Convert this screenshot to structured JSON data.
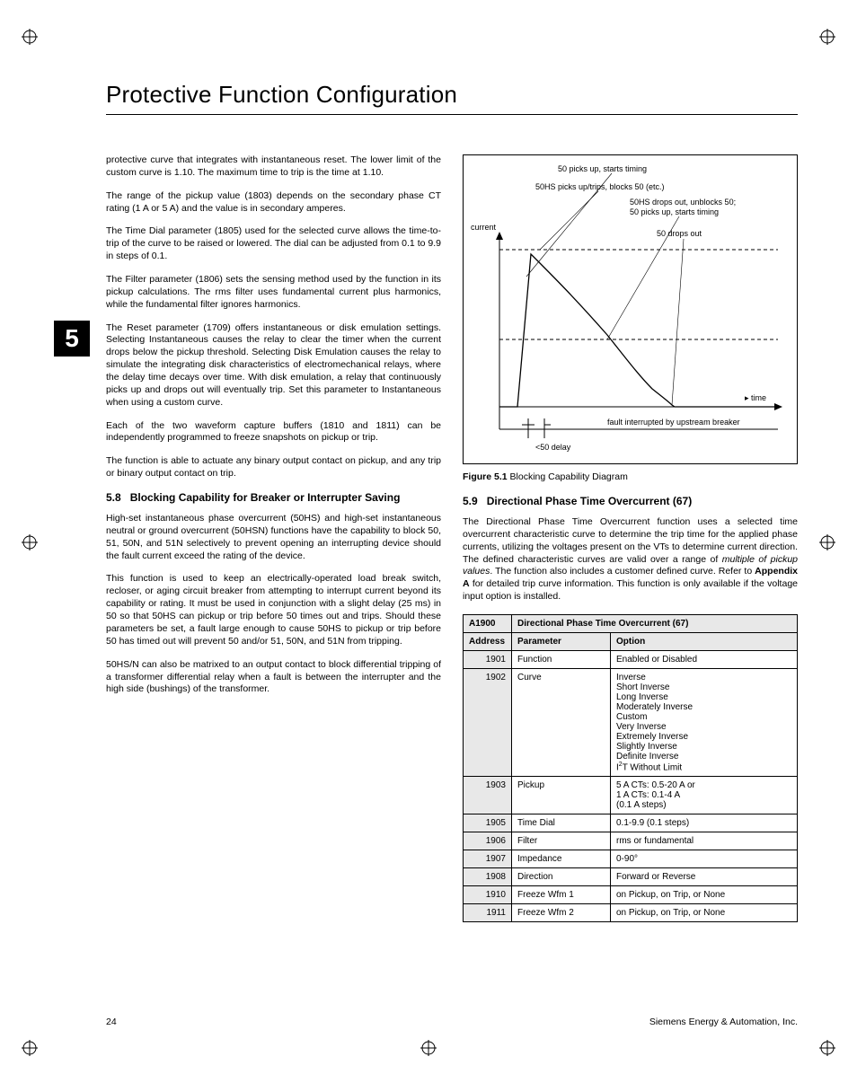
{
  "page_title": "Protective Function Configuration",
  "chapter_number": "5",
  "page_number": "24",
  "footer_company": "Siemens Energy & Automation, Inc.",
  "left_col": {
    "p1": "protective curve that integrates with instantaneous reset. The lower limit of the custom curve is 1.10. The maximum time to trip is the time at 1.10.",
    "p2": "The range of the pickup value (1803) depends on the secondary phase CT rating (1 A or 5 A) and the value is in secondary amperes.",
    "p3": "The Time Dial parameter (1805) used for the selected curve allows the time-to-trip of the curve to be raised or lowered. The dial can be adjusted from 0.1 to 9.9 in steps of 0.1.",
    "p4": "The Filter parameter (1806) sets the sensing method used by the function in its pickup calculations. The rms filter uses fundamental current plus harmonics, while the fundamental filter ignores harmonics.",
    "p5": "The Reset parameter (1709) offers instantaneous or disk emulation settings. Selecting Instantaneous causes the relay to clear the timer when the current drops below the pickup threshold. Selecting Disk Emulation causes the relay to simulate the integrating disk characteristics of electromechanical relays, where the delay time decays over time. With disk emulation, a relay that continuously picks up and drops out will eventually trip. Set this parameter to Instantaneous when using a custom curve.",
    "p6": "Each of the two waveform capture buffers (1810 and 1811) can be independently programmed to freeze snapshots on pickup or trip.",
    "p7": "The function is able to actuate any binary output contact on pickup, and any trip or binary output contact on trip.",
    "h58_num": "5.8",
    "h58_txt": "Blocking Capability for Breaker or Interrupter Saving",
    "p8": "High-set instantaneous phase overcurrent (50HS) and high-set instantaneous neutral or ground overcurrent (50HSN) functions have the capability to block 50, 51, 50N, and 51N selectively to prevent opening an interrupting device should the fault current exceed the rating of the device.",
    "p9": "This function is used to keep an electrically-operated load break switch, recloser, or aging circuit breaker from attempting to interrupt current beyond its capability or rating. It must be used in conjunction with a slight delay (25 ms) in 50 so that 50HS can pickup or trip before 50 times out and trips. Should these parameters be set, a fault large enough to cause 50HS to pickup or trip before 50 has timed out will prevent 50 and/or 51, 50N, and 51N from tripping.",
    "p10": "50HS/N can also be matrixed to an output contact to block differential tripping of a transformer differential relay when a fault is between the interrupter and the high side (bushings) of the transformer."
  },
  "figure": {
    "labels": {
      "l1": "50 picks up, starts timing",
      "l2": "50HS picks up/trips, blocks 50 (etc.)",
      "l3": "50HS drops out, unblocks 50;\n50 picks up, starts timing",
      "l4": "50 drops out",
      "y_axis": "current",
      "x_axis": "time",
      "fault": "fault interrupted by upstream breaker",
      "delay": "<50 delay"
    },
    "caption_bold": "Figure 5.1",
    "caption_text": " Blocking Capability Diagram",
    "curve_color": "#000000",
    "dash_color": "#000000",
    "bg": "#ffffff"
  },
  "right_col": {
    "h59_num": "5.9",
    "h59_txt": "Directional Phase Time Overcurrent (67)",
    "p1a": "The Directional Phase Time Overcurrent function uses a selected time overcurrent characteristic curve to determine the trip time for the applied phase currents, utilizing the voltages present on the VTs to determine current direction. The defined characteristic curves are valid over a range of ",
    "p1_italic": "multiple of pickup values",
    "p1b": ". The function also includes a customer defined curve. Refer to ",
    "p1_bold": "Appendix A",
    "p1c": " for detailed trip curve information. This function is only available if the voltage input option is installed."
  },
  "table": {
    "header_addr": "A1900",
    "header_title": "Directional Phase Time Overcurrent (67)",
    "col_addr": "Address",
    "col_param": "Parameter",
    "col_option": "Option",
    "rows": [
      {
        "addr": "1901",
        "param": "Function",
        "option": "Enabled or Disabled"
      },
      {
        "addr": "1902",
        "param": "Curve",
        "option": "Inverse\nShort Inverse\nLong Inverse\nModerately Inverse\nCustom\nVery Inverse\nExtremely Inverse\nSlightly Inverse\nDefinite Inverse\nI²T Without Limit"
      },
      {
        "addr": "1903",
        "param": "Pickup",
        "option": "5 A CTs: 0.5-20 A or\n1 A CTs: 0.1-4 A\n(0.1 A steps)"
      },
      {
        "addr": "1905",
        "param": "Time Dial",
        "option": "0.1-9.9 (0.1 steps)"
      },
      {
        "addr": "1906",
        "param": "Filter",
        "option": "rms or fundamental"
      },
      {
        "addr": "1907",
        "param": "Impedance",
        "option": "0-90°"
      },
      {
        "addr": "1908",
        "param": "Direction",
        "option": "Forward or Reverse"
      },
      {
        "addr": "1910",
        "param": "Freeze Wfm 1",
        "option": "on Pickup, on Trip, or None"
      },
      {
        "addr": "1911",
        "param": "Freeze Wfm 2",
        "option": "on Pickup, on Trip, or None"
      }
    ]
  }
}
